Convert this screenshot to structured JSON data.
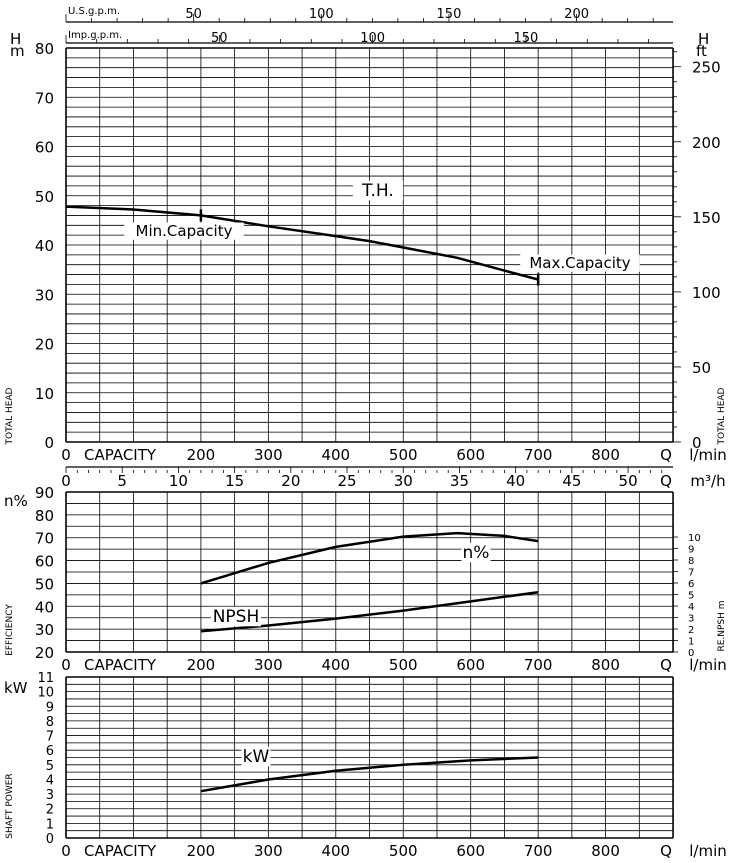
{
  "chart_data": [
    {
      "type": "line",
      "panel": "head",
      "x_unit": "l/min",
      "xlim": [
        0,
        900
      ],
      "ylim": [
        0,
        80
      ],
      "y_unit_left": "m",
      "y_symbol": "H",
      "y_unit_right": "ft",
      "right_ticks": [
        "0",
        "50",
        "100",
        "150",
        "200",
        "250"
      ],
      "ylabel_left": "TOTAL HEAD",
      "ylabel_right": "TOTAL HEAD",
      "top_axis_1_label": "U.S.g.p.m.",
      "top_axis_1_ticks": [
        "50",
        "100",
        "150",
        "200"
      ],
      "top_axis_2_label": "Imp.g.p.m.",
      "top_axis_2_ticks": [
        "50",
        "100",
        "150"
      ],
      "left_ticks": [
        "0",
        "10",
        "20",
        "30",
        "40",
        "50",
        "60",
        "70",
        "80"
      ],
      "bottom_ticks": [
        "0",
        "CAPACITY",
        "200",
        "300",
        "400",
        "500",
        "600",
        "700",
        "800",
        "Q",
        "l/min"
      ],
      "series": [
        {
          "name": "T.H.",
          "x": [
            0,
            100,
            200,
            300,
            400,
            450,
            500,
            580,
            650,
            700
          ],
          "y": [
            47.8,
            47.2,
            46.0,
            43.8,
            41.8,
            40.8,
            39.5,
            37.4,
            34.8,
            33.0
          ]
        }
      ],
      "annotations": [
        {
          "text": "Min.Capacity",
          "x": 200,
          "y": 46.0
        },
        {
          "text": "Max.Capacity",
          "x": 700,
          "y": 33.0
        }
      ]
    },
    {
      "type": "line",
      "panel": "efficiency",
      "x_unit": "l/min",
      "xlim": [
        0,
        900
      ],
      "ylim": [
        20,
        90
      ],
      "y_unit_left": "n%",
      "ylabel_left": "EFFICIENCY",
      "ylabel_right": "RE.NPSH m",
      "top_axis_label": "m³/h",
      "top_axis_ticks": [
        "0",
        "5",
        "10",
        "15",
        "20",
        "25",
        "30",
        "35",
        "40",
        "45",
        "50",
        "Q"
      ],
      "left_ticks": [
        "20",
        "30",
        "40",
        "50",
        "60",
        "70",
        "80",
        "90"
      ],
      "right_ticks": [
        "0",
        "1",
        "2",
        "3",
        "4",
        "5",
        "6",
        "7",
        "8",
        "9",
        "10"
      ],
      "bottom_ticks": [
        "0",
        "CAPACITY",
        "200",
        "300",
        "400",
        "500",
        "600",
        "700",
        "800",
        "Q",
        "l/min"
      ],
      "series": [
        {
          "name": "n%",
          "x": [
            200,
            300,
            400,
            500,
            580,
            650,
            700
          ],
          "y": [
            50.0,
            59.0,
            66.0,
            70.5,
            72.0,
            70.8,
            68.5
          ]
        },
        {
          "name": "NPSH",
          "unit": "m",
          "x": [
            200,
            300,
            400,
            500,
            600,
            700
          ],
          "y": [
            1.8,
            2.3,
            2.9,
            3.6,
            4.4,
            5.2
          ]
        }
      ]
    },
    {
      "type": "line",
      "panel": "power",
      "x_unit": "l/min",
      "xlim": [
        0,
        900
      ],
      "ylim": [
        0,
        11
      ],
      "y_unit_left": "kW",
      "ylabel_left": "SHAFT POWER",
      "left_ticks": [
        "0",
        "1",
        "2",
        "3",
        "4",
        "5",
        "6",
        "7",
        "8",
        "9",
        "10",
        "11"
      ],
      "bottom_ticks": [
        "0",
        "CAPACITY",
        "200",
        "300",
        "400",
        "500",
        "600",
        "700",
        "800",
        "Q",
        "l/min"
      ],
      "series": [
        {
          "name": "kW",
          "x": [
            200,
            300,
            400,
            500,
            600,
            700
          ],
          "y": [
            3.2,
            4.0,
            4.6,
            5.0,
            5.3,
            5.5
          ]
        }
      ]
    }
  ]
}
